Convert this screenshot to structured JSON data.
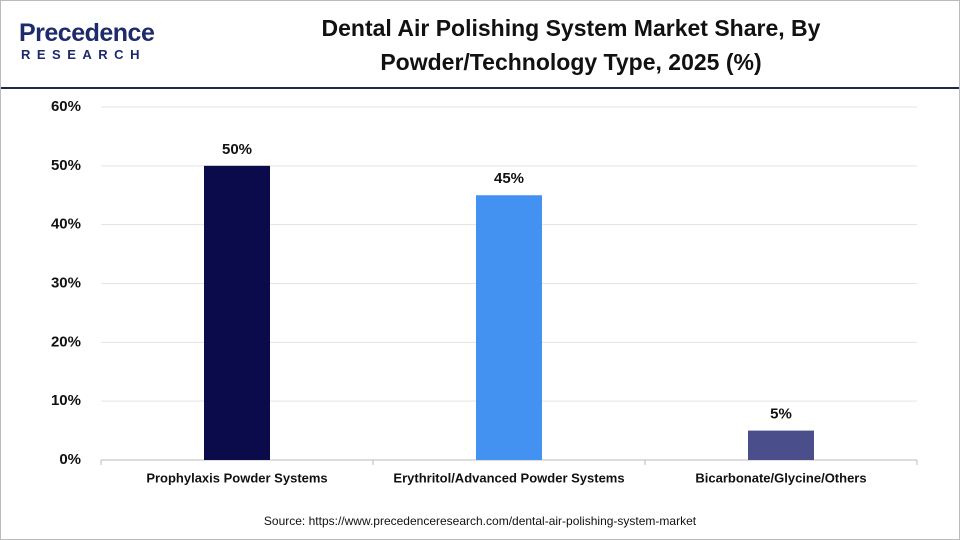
{
  "logo": {
    "name": "Precedence",
    "tagline": "RESEARCH"
  },
  "chart_data": {
    "type": "bar",
    "title": "Dental Air Polishing System Market Share, By Powder/Technology Type, 2025 (%)",
    "categories": [
      "Prophylaxis Powder Systems",
      "Erythritol/Advanced Powder Systems",
      "Bicarbonate/Glycine/Others"
    ],
    "values": [
      50,
      45,
      5
    ],
    "value_labels": [
      "50%",
      "45%",
      "5%"
    ],
    "colors": [
      "#0b0b4b",
      "#4392f1",
      "#4a4f8c"
    ],
    "ylim": [
      0,
      60
    ],
    "yticks": [
      {
        "value": 0,
        "label": "0%"
      },
      {
        "value": 10,
        "label": "10%"
      },
      {
        "value": 20,
        "label": "20%"
      },
      {
        "value": 30,
        "label": "30%"
      },
      {
        "value": 40,
        "label": "40%"
      },
      {
        "value": 50,
        "label": "50%"
      },
      {
        "value": 60,
        "label": "60%"
      }
    ],
    "grid": true,
    "source": "Source: https://www.precedenceresearch.com/dental-air-polishing-system-market"
  }
}
